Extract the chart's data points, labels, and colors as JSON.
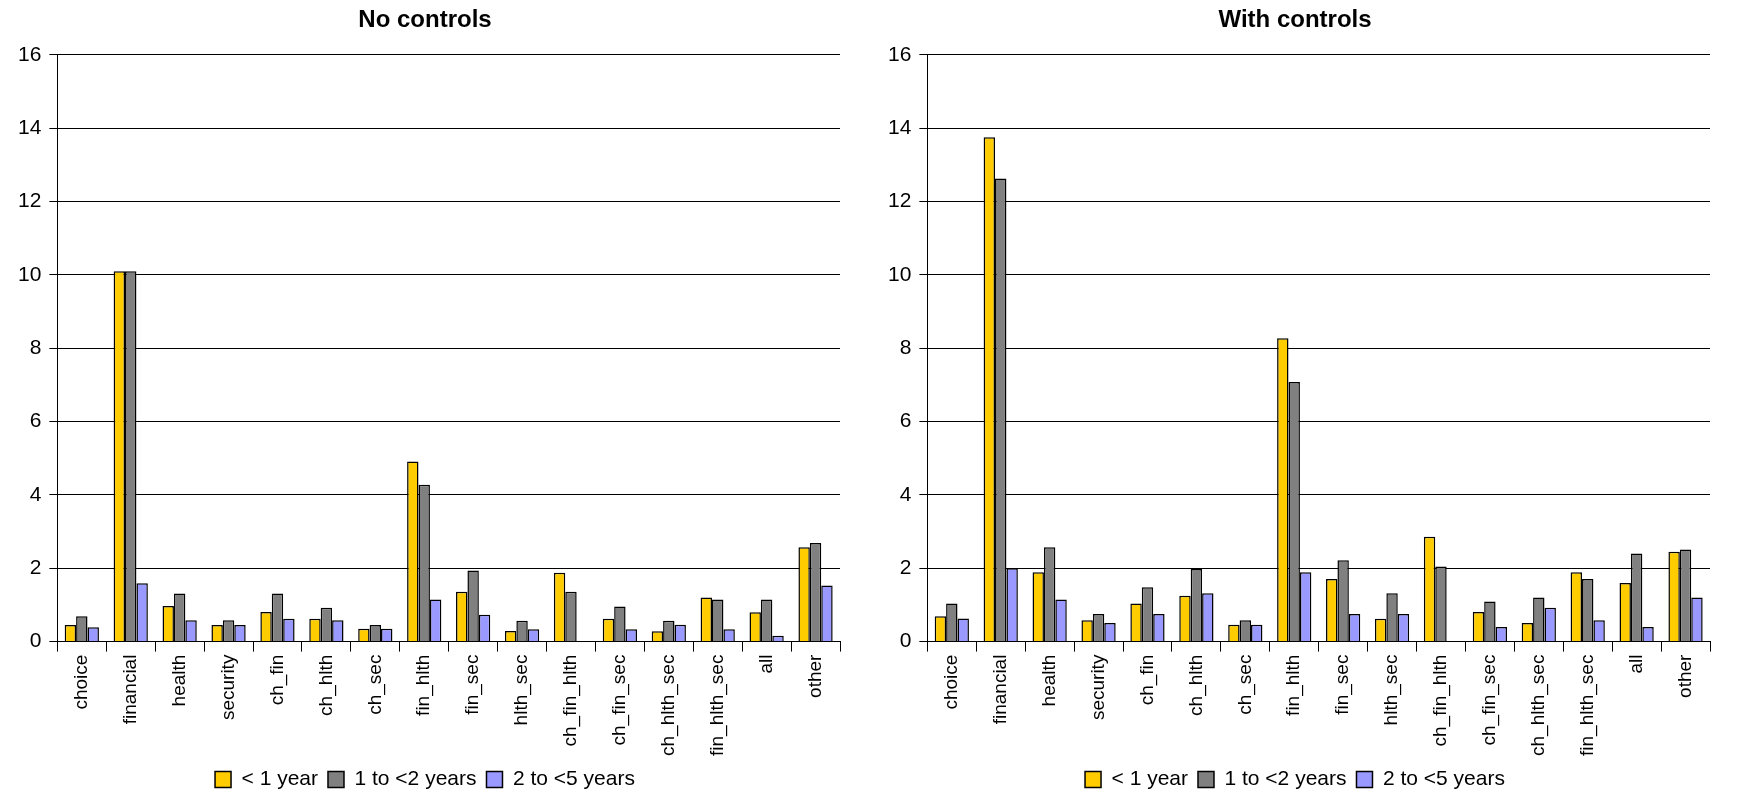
{
  "chart_data": [
    {
      "type": "bar",
      "title": "No controls",
      "categories": [
        "choice",
        "financial",
        "health",
        "security",
        "ch_fin",
        "ch_hlth",
        "ch_sec",
        "fin_hlth",
        "fin_sec",
        "hlth_sec",
        "ch_fin_hlth",
        "ch_fin_sec",
        "ch_hlth_sec",
        "fin_hlth_sec",
        "all",
        "other"
      ],
      "series": [
        {
          "name": "< 1 year",
          "color": "#ffcc00",
          "values": [
            0.45,
            10.1,
            0.97,
            0.45,
            0.81,
            0.62,
            0.35,
            4.91,
            1.36,
            0.29,
            1.88,
            0.62,
            0.28,
            1.2,
            0.8,
            2.57
          ]
        },
        {
          "name": "1 to <2 years",
          "color": "#808080",
          "values": [
            0.69,
            10.1,
            1.31,
            0.58,
            1.31,
            0.92,
            0.45,
            4.28,
            1.94,
            0.57,
            1.36,
            0.96,
            0.57,
            1.15,
            1.15,
            2.69
          ]
        },
        {
          "name": "2 to <5 years",
          "color": "#9999ff",
          "values": [
            0.39,
            1.59,
            0.58,
            0.45,
            0.62,
            0.58,
            0.35,
            1.15,
            0.73,
            0.34,
            null,
            0.34,
            0.46,
            0.34,
            0.16,
            1.53
          ]
        }
      ],
      "ylim": [
        0,
        16
      ],
      "yticks": [
        0,
        2,
        4,
        6,
        8,
        10,
        12,
        14,
        16
      ],
      "grid": "y",
      "legend": "bottom"
    },
    {
      "type": "bar",
      "title": "With controls",
      "categories": [
        "choice",
        "financial",
        "health",
        "security",
        "ch_fin",
        "ch_hlth",
        "ch_sec",
        "fin_hlth",
        "fin_sec",
        "hlth_sec",
        "ch_fin_hlth",
        "ch_fin_sec",
        "ch_hlth_sec",
        "fin_hlth_sec",
        "all",
        "other"
      ],
      "series": [
        {
          "name": "< 1 year",
          "color": "#ffcc00",
          "values": [
            0.69,
            13.75,
            1.89,
            0.58,
            1.04,
            1.25,
            0.46,
            8.27,
            1.71,
            0.62,
            2.86,
            0.81,
            0.51,
            1.89,
            1.6,
            2.45
          ]
        },
        {
          "name": "1 to <2 years",
          "color": "#808080",
          "values": [
            1.04,
            12.63,
            2.57,
            0.75,
            1.48,
            1.98,
            0.58,
            7.08,
            2.22,
            1.32,
            2.05,
            1.09,
            1.2,
            1.71,
            2.4,
            2.51
          ]
        },
        {
          "name": "2 to <5 years",
          "color": "#9999ff",
          "values": [
            0.63,
            2.0,
            1.15,
            0.51,
            0.75,
            1.32,
            0.46,
            1.89,
            0.75,
            0.75,
            null,
            0.4,
            0.92,
            0.58,
            0.4,
            1.2
          ]
        }
      ],
      "ylim": [
        0,
        16
      ],
      "yticks": [
        0,
        2,
        4,
        6,
        8,
        10,
        12,
        14,
        16
      ],
      "grid": "y",
      "legend": "bottom"
    }
  ]
}
